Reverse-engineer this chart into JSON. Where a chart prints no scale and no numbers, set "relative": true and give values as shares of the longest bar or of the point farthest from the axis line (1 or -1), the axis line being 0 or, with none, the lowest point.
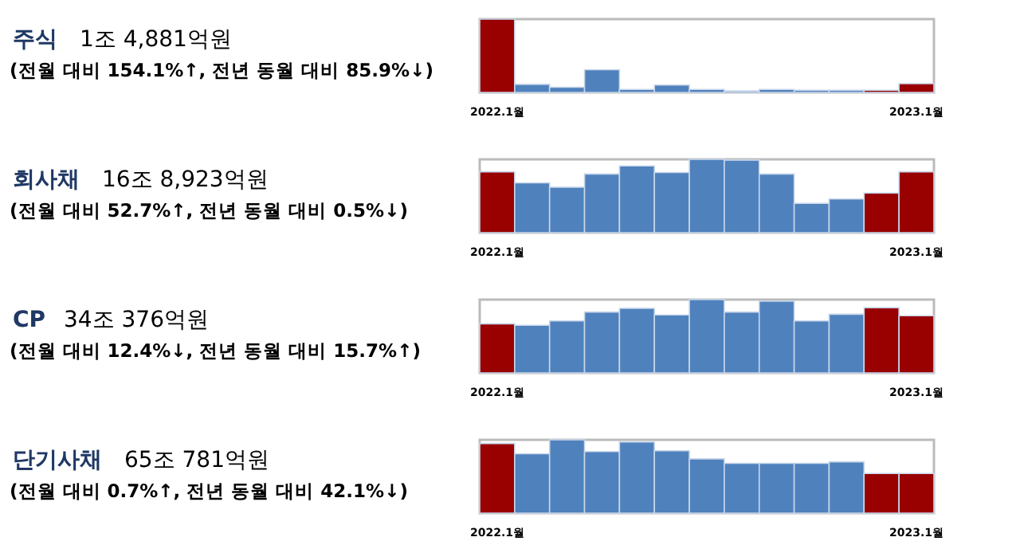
{
  "chart_data": [
    {
      "type": "bar",
      "annotations": [
        "주식",
        "1조 4,881억원",
        "(전월 대비 154.1%↑, 전년 동월 대비 85.9%↓)"
      ],
      "relative": true,
      "categories": [
        "2022.1월",
        null,
        null,
        null,
        null,
        null,
        null,
        null,
        null,
        null,
        null,
        null,
        "2023.1월"
      ],
      "values": [
        1.0,
        0.11,
        0.07,
        0.31,
        0.04,
        0.1,
        0.04,
        0.02,
        0.04,
        0.03,
        0.03,
        0.03,
        0.12
      ],
      "colors": [
        "#990000",
        "#4f81bd",
        "#4f81bd",
        "#4f81bd",
        "#4f81bd",
        "#4f81bd",
        "#4f81bd",
        "#4f81bd",
        "#4f81bd",
        "#4f81bd",
        "#4f81bd",
        "#990000",
        "#990000"
      ]
    },
    {
      "type": "bar",
      "annotations": [
        "회사채",
        "16조 8,923억원",
        "(전월 대비 52.7%↑, 전년 동월 대비 0.5%↓)"
      ],
      "relative": true,
      "categories": [
        "2022.1월",
        null,
        null,
        null,
        null,
        null,
        null,
        null,
        null,
        null,
        null,
        null,
        "2023.1월"
      ],
      "values": [
        0.83,
        0.68,
        0.62,
        0.8,
        0.91,
        0.82,
        1.0,
        0.99,
        0.8,
        0.4,
        0.46,
        0.54,
        0.83
      ],
      "colors": [
        "#990000",
        "#4f81bd",
        "#4f81bd",
        "#4f81bd",
        "#4f81bd",
        "#4f81bd",
        "#4f81bd",
        "#4f81bd",
        "#4f81bd",
        "#4f81bd",
        "#4f81bd",
        "#990000",
        "#990000"
      ]
    },
    {
      "type": "bar",
      "annotations": [
        "CP",
        "34조 376억원",
        "(전월 대비 12.4%↓, 전년 동월 대비 15.7%↑)"
      ],
      "relative": true,
      "categories": [
        "2022.1월",
        null,
        null,
        null,
        null,
        null,
        null,
        null,
        null,
        null,
        null,
        null,
        "2023.1월"
      ],
      "values": [
        0.67,
        0.65,
        0.71,
        0.83,
        0.88,
        0.79,
        1.0,
        0.83,
        0.98,
        0.71,
        0.8,
        0.89,
        0.78
      ],
      "colors": [
        "#990000",
        "#4f81bd",
        "#4f81bd",
        "#4f81bd",
        "#4f81bd",
        "#4f81bd",
        "#4f81bd",
        "#4f81bd",
        "#4f81bd",
        "#4f81bd",
        "#4f81bd",
        "#990000",
        "#990000"
      ]
    },
    {
      "type": "bar",
      "annotations": [
        "단기사채",
        "65조 781억원",
        "(전월 대비 0.7%↑, 전년 동월 대비 42.1%↓)"
      ],
      "relative": true,
      "categories": [
        "2022.1월",
        null,
        null,
        null,
        null,
        null,
        null,
        null,
        null,
        null,
        null,
        null,
        "2023.1월"
      ],
      "values": [
        0.95,
        0.81,
        1.0,
        0.84,
        0.97,
        0.85,
        0.74,
        0.68,
        0.68,
        0.68,
        0.7,
        0.54,
        0.54
      ],
      "colors": [
        "#990000",
        "#4f81bd",
        "#4f81bd",
        "#4f81bd",
        "#4f81bd",
        "#4f81bd",
        "#4f81bd",
        "#4f81bd",
        "#4f81bd",
        "#4f81bd",
        "#4f81bd",
        "#990000",
        "#990000"
      ]
    }
  ]
}
